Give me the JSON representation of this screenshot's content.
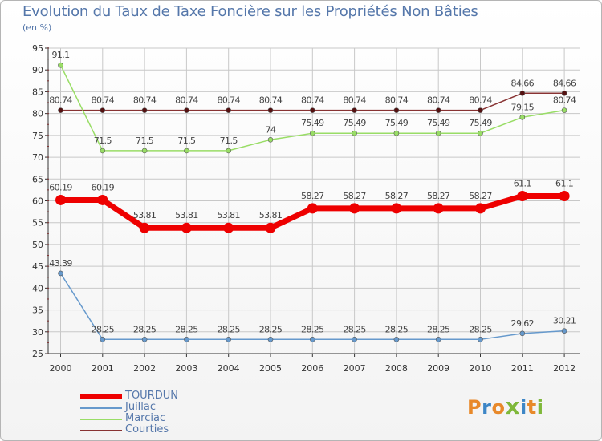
{
  "header": {
    "title": "Evolution du Taux de Taxe Foncière sur les Propriétés Non Bâties",
    "unit": "(en %)"
  },
  "chart_data": {
    "type": "line",
    "title": "Evolution du Taux de Taxe Foncière sur les Propriétés Non Bâties",
    "ylabel": "(en %)",
    "xlabel": "",
    "x": [
      "2000",
      "2001",
      "2002",
      "2003",
      "2004",
      "2005",
      "2006",
      "2007",
      "2008",
      "2009",
      "2010",
      "2011",
      "2012"
    ],
    "ylim": [
      25,
      95
    ],
    "yticks": [
      25,
      30,
      35,
      40,
      45,
      50,
      55,
      60,
      65,
      70,
      75,
      80,
      85,
      90,
      95
    ],
    "grid": true,
    "series": [
      {
        "name": "TOURDUN",
        "color": "#ee0000",
        "values": [
          60.19,
          60.19,
          53.81,
          53.81,
          53.81,
          53.81,
          58.27,
          58.27,
          58.27,
          58.27,
          58.27,
          61.1,
          61.1
        ],
        "labels": [
          "60.19",
          "60.19",
          "53.81",
          "53.81",
          "53.81",
          "53.81",
          "58.27",
          "58.27",
          "58.27",
          "58.27",
          "58.27",
          "61.1",
          "61.1"
        ]
      },
      {
        "name": "Juillac",
        "color": "#6699cc",
        "values": [
          43.39,
          28.25,
          28.25,
          28.25,
          28.25,
          28.25,
          28.25,
          28.25,
          28.25,
          28.25,
          28.25,
          29.62,
          30.21
        ],
        "labels": [
          "43.39",
          "28.25",
          "28.25",
          "28.25",
          "28.25",
          "28.25",
          "28.25",
          "28.25",
          "28.25",
          "28.25",
          "28.25",
          "29.62",
          "30.21"
        ]
      },
      {
        "name": "Marciac",
        "color": "#99dd66",
        "values": [
          91.1,
          71.5,
          71.5,
          71.5,
          71.5,
          74,
          75.49,
          75.49,
          75.49,
          75.49,
          75.49,
          79.15,
          80.74
        ],
        "labels": [
          "91.1",
          "71.5",
          "71.5",
          "71.5",
          "71.5",
          "74",
          "75.49",
          "75.49",
          "75.49",
          "75.49",
          "75.49",
          "79.15",
          "80.74"
        ]
      },
      {
        "name": "Courties",
        "color": "#883333",
        "values": [
          80.74,
          80.74,
          80.74,
          80.74,
          80.74,
          80.74,
          80.74,
          80.74,
          80.74,
          80.74,
          80.74,
          84.66,
          84.66
        ],
        "labels": [
          "80.74",
          "80.74",
          "80.74",
          "80.74",
          "80.74",
          "80.74",
          "80.74",
          "80.74",
          "80.74",
          "80.74",
          "80.74",
          "84.66",
          "84.66"
        ]
      }
    ],
    "legend_position": "bottom-left"
  },
  "logo": {
    "text": "Proxiti"
  }
}
